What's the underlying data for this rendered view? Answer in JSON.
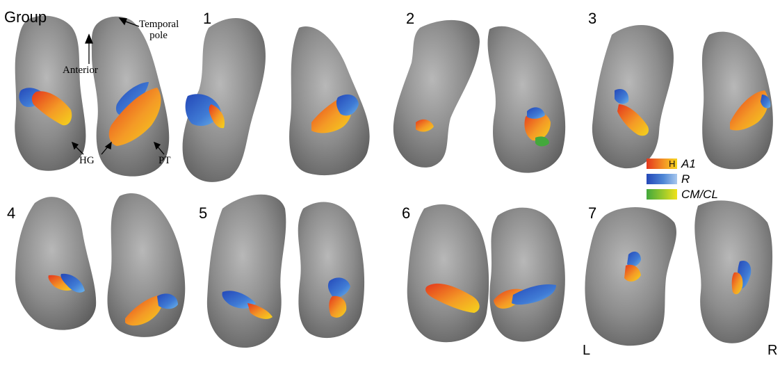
{
  "panels": [
    {
      "label": "Group"
    },
    {
      "label": "1"
    },
    {
      "label": "2"
    },
    {
      "label": "3"
    },
    {
      "label": "4"
    },
    {
      "label": "5"
    },
    {
      "label": "6"
    },
    {
      "label": "7"
    }
  ],
  "annotations": {
    "temporal_pole": "Temporal pole",
    "anterior": "Anterior",
    "hg": "HG",
    "pt": "PT"
  },
  "legend": {
    "items": [
      {
        "label": "A1",
        "marker": "H",
        "colors": [
          "#e4361c",
          "#f49a26",
          "#f4d41c"
        ]
      },
      {
        "label": "R",
        "colors": [
          "#2448b8",
          "#4f87d6",
          "#a8c8ee"
        ]
      },
      {
        "label": "CM/CL",
        "colors": [
          "#43a83c",
          "#9cca2c",
          "#f1e21a"
        ]
      }
    ]
  },
  "hemispheres": {
    "left": "L",
    "right": "R"
  },
  "colors": {
    "cortex": "#8a8a8a",
    "cortex_light": "#b3b3b3",
    "cortex_dark": "#5c5c5c",
    "a1_red": "#e4361c",
    "a1_orange": "#f49a26",
    "a1_yellow": "#f4d41c",
    "r_blue": "#2b56c0",
    "r_light": "#5fa8e6",
    "cmcl_green": "#43a83c"
  }
}
